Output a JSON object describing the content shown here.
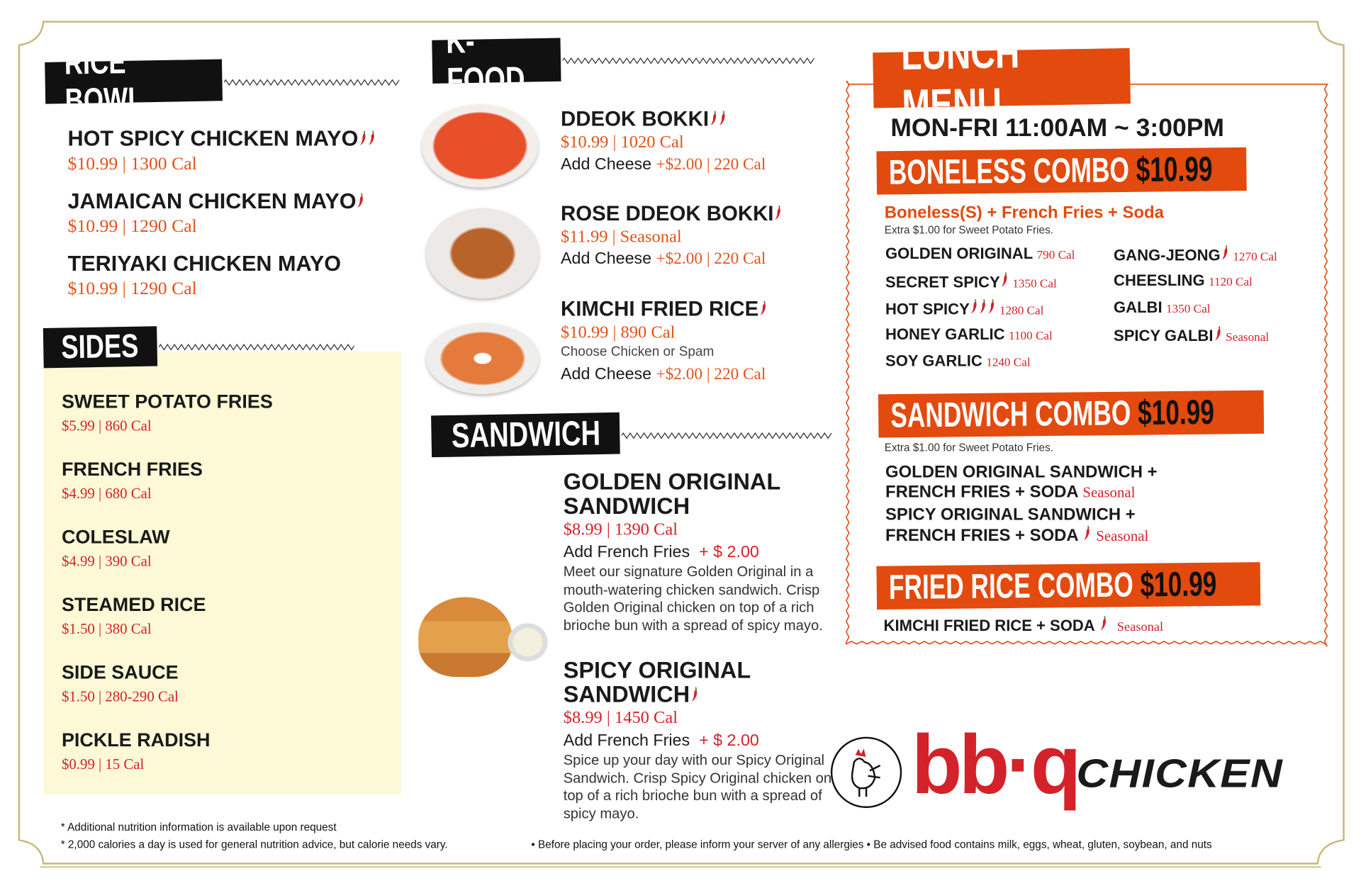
{
  "colors": {
    "accent": "#e34a0e",
    "price": "#e0531b",
    "calorie_red": "#d3222a",
    "sides_bg": "#fdf9d6",
    "border_gold": "#c9b77a",
    "tag_black": "#111111"
  },
  "rice_bowl": {
    "title": "RICE BOWL",
    "items": [
      {
        "name": "HOT SPICY CHICKEN MAYO",
        "spice": 2,
        "price": "$10.99 | 1300 Cal"
      },
      {
        "name": "JAMAICAN CHICKEN MAYO",
        "spice": 1,
        "price": "$10.99 | 1290 Cal"
      },
      {
        "name": "TERIYAKI CHICKEN MAYO",
        "spice": 0,
        "price": "$10.99 | 1290 Cal"
      }
    ]
  },
  "sides": {
    "title": "SIDES",
    "items": [
      {
        "name": "SWEET POTATO FRIES",
        "price": "$5.99 | 860 Cal"
      },
      {
        "name": "FRENCH FRIES",
        "price": "$4.99 | 680 Cal"
      },
      {
        "name": "COLESLAW",
        "price": "$4.99 | 390 Cal"
      },
      {
        "name": "STEAMED RICE",
        "price": "$1.50  | 380 Cal"
      },
      {
        "name": "SIDE SAUCE",
        "price": "$1.50 | 280-290 Cal"
      },
      {
        "name": "PICKLE RADISH",
        "price": "$0.99 | 15 Cal"
      }
    ]
  },
  "kfood": {
    "title": "K-FOOD",
    "items": [
      {
        "name": "DDEOK BOKKI",
        "spice": 2,
        "price": "$10.99 |  1020 Cal",
        "note": "",
        "addon": "Add Cheese",
        "addon_price": "+$2.00 | 220 Cal"
      },
      {
        "name": "ROSE DDEOK BOKKI",
        "spice": 1,
        "price": "$11.99 |  Seasonal",
        "note": "",
        "addon": "Add Cheese",
        "addon_price": "+$2.00 | 220 Cal"
      },
      {
        "name": "KIMCHI FRIED RICE",
        "spice": 1,
        "price": "$10.99 |  890 Cal",
        "note": "Choose Chicken or Spam",
        "addon": "Add Cheese",
        "addon_price": "+$2.00 | 220 Cal"
      }
    ]
  },
  "sandwich": {
    "title": "SANDWICH",
    "items": [
      {
        "name1": "GOLDEN ORIGINAL",
        "name2": "SANDWICH",
        "spice": 0,
        "price": "$8.99 | 1390 Cal",
        "addon": "Add French Fries",
        "addon_price": "+ $ 2.00",
        "desc": "Meet our signature Golden Original in a mouth-watering chicken sandwich. Crisp Golden Original chicken on top of a rich brioche bun with a spread of spicy mayo."
      },
      {
        "name1": "SPICY ORIGINAL",
        "name2": "SANDWICH",
        "spice": 1,
        "price": "$8.99 | 1450 Cal",
        "addon": "Add French Fries",
        "addon_price": "+ $ 2.00",
        "desc": "Spice up your day with our Spicy Original Sandwich. Crisp Spicy Original chicken on top of a rich brioche bun with a spread of spicy mayo."
      }
    ]
  },
  "lunch": {
    "title": "LUNCH MENU",
    "hours": "MON-FRI 11:00AM ~ 3:00PM",
    "boneless": {
      "title": "BONELESS COMBO",
      "price": "$10.99",
      "subtitle": "Boneless(S) + French Fries + Soda",
      "extra": "Extra $1.00 for Sweet Potato Fries.",
      "items": [
        {
          "name": "GOLDEN ORIGINAL",
          "spice": 0,
          "cal": "790 Cal"
        },
        {
          "name": "SECRET SPICY",
          "spice": 1,
          "cal": "1350 Cal"
        },
        {
          "name": "HOT SPICY",
          "spice": 3,
          "cal": "1280 Cal"
        },
        {
          "name": "HONEY GARLIC",
          "spice": 0,
          "cal": "1100 Cal"
        },
        {
          "name": "SOY GARLIC",
          "spice": 0,
          "cal": "1240 Cal"
        },
        {
          "name": "GANG-JEONG",
          "spice": 1,
          "cal": "1270 Cal"
        },
        {
          "name": "CHEESLING",
          "spice": 0,
          "cal": "1120 Cal"
        },
        {
          "name": "GALBI",
          "spice": 0,
          "cal": "1350 Cal"
        },
        {
          "name": "SPICY GALBI",
          "spice": 1,
          "cal": "Seasonal"
        }
      ]
    },
    "sandwich_combo": {
      "title": "SANDWICH COMBO",
      "price": "$10.99",
      "extra": "Extra $1.00 for Sweet Potato Fries.",
      "items": [
        {
          "line1": "GOLDEN ORIGINAL SANDWICH +",
          "line2": "FRENCH FRIES + SODA",
          "spice": 0,
          "note": "Seasonal"
        },
        {
          "line1": "SPICY ORIGINAL SANDWICH +",
          "line2": "FRENCH FRIES + SODA",
          "spice": 1,
          "note": "Seasonal"
        }
      ]
    },
    "fried_rice_combo": {
      "title": "FRIED RICE COMBO",
      "price": "$10.99",
      "item": "KIMCHI FRIED RICE + SODA",
      "spice": 1,
      "note": "Seasonal"
    }
  },
  "brand": {
    "logo_text": "bb·q",
    "logo_word": "CHICKEN"
  },
  "footer": {
    "line1": "* Additional nutrition information is available upon request",
    "line2": "* 2,000 calories a day is used for general nutrition advice, but calorie needs vary.",
    "line3": "• Before placing your order, please inform your server of any allergies • Be advised food contains milk, eggs, wheat, gluten, soybean, and nuts"
  }
}
